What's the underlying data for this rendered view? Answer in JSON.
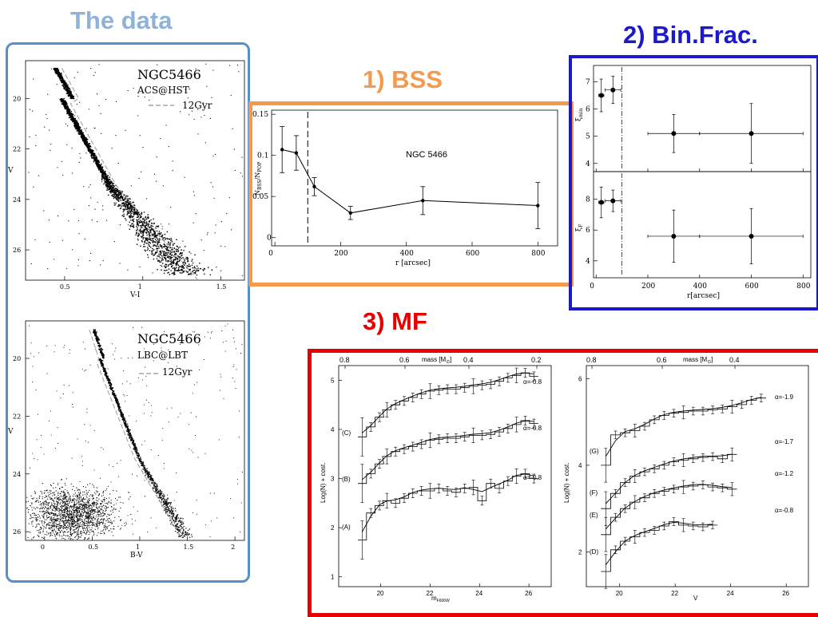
{
  "titles": {
    "data": "The data",
    "bss": "1) BSS",
    "binfrac": "2) Bin.Frac.",
    "mf": "3) MF"
  },
  "colors": {
    "data_title": "#8fb2d9",
    "data_frame": "#5b8fc7",
    "bss": "#f39a4d",
    "binfrac": "#1a1acc",
    "mf": "#e60000"
  },
  "cmd_hst": {
    "name": "NGC5466",
    "instrument": "ACS@HST",
    "iso_label": "12Gyr",
    "xlabel": "V-I",
    "ylabel": "V",
    "xticks": [
      "0.5",
      "1",
      "1.5"
    ],
    "yticks": [
      "20",
      "22",
      "24",
      "26"
    ]
  },
  "cmd_lbt": {
    "name": "NGC5466",
    "instrument": "LBC@LBT",
    "iso_label": "12Gyr",
    "xlabel": "B-V",
    "ylabel": "V",
    "xticks": [
      "0",
      "0.5",
      "1",
      "1.5",
      "2"
    ],
    "yticks": [
      "20",
      "22",
      "24",
      "26"
    ]
  },
  "bss_plot": {
    "label": "NGC 5466",
    "ylabel": "N",
    "ylabel_sub1": "BSS",
    "ylabel_mid": "/N",
    "ylabel_sub2": "POP",
    "xlabel": "r [arcsec]",
    "xticks": [
      "0",
      "200",
      "400",
      "600",
      "800"
    ],
    "yticks": [
      "0",
      "0.05",
      "0.1",
      "0.15"
    ]
  },
  "binfrac_plot": {
    "xlabel": "r[arcsec]",
    "ylabel_top": "ξ",
    "ylabel_top_sub": "min",
    "ylabel_bot": "ξ",
    "ylabel_bot_sub": "F",
    "xticks": [
      "0",
      "200",
      "400",
      "600",
      "800"
    ],
    "yticks_top": [
      "4",
      "5",
      "6",
      "7"
    ],
    "yticks_bot": [
      "4",
      "6",
      "8"
    ]
  },
  "mf_left": {
    "top_axis_label": "mass [M",
    "top_axis_sub": "⊙",
    "top_ticks": [
      "0.8",
      "0.6",
      "0.4",
      "0.2"
    ],
    "ylabel": "Log(N) + cost.",
    "xlabel": "m",
    "xlabel_sub": "F606W",
    "xticks": [
      "20",
      "22",
      "24",
      "26"
    ],
    "yticks": [
      "1",
      "2",
      "3",
      "4",
      "5"
    ],
    "curves": [
      "(A)",
      "(B)",
      "(C)"
    ],
    "alphas": [
      "α=-0.8",
      "α=-0.8",
      "α=-0.8"
    ]
  },
  "mf_right": {
    "top_axis_label": "mass [M",
    "top_axis_sub": "⊙",
    "top_ticks": [
      "0.8",
      "0.6",
      "0.4"
    ],
    "ylabel": "Log(N) + cost.",
    "xlabel": "V",
    "xticks": [
      "20",
      "22",
      "24",
      "26"
    ],
    "yticks": [
      "2",
      "4",
      "6"
    ],
    "curves": [
      "(D)",
      "(E)",
      "(F)",
      "(G)"
    ],
    "alphas": [
      "α=-0.8",
      "α=-1.2",
      "α=-1.7",
      "α=-1.9"
    ]
  },
  "chart_data": [
    {
      "type": "scatter",
      "title": "NGC 5466",
      "xlabel": "r [arcsec]",
      "ylabel": "N_BSS/N_POP",
      "xlim": [
        -10,
        860
      ],
      "ylim": [
        -0.01,
        0.155
      ],
      "x": [
        22,
        65,
        120,
        230,
        450,
        800
      ],
      "y": [
        0.107,
        0.103,
        0.062,
        0.03,
        0.045,
        0.039
      ],
      "yerr": [
        0.028,
        0.021,
        0.011,
        0.008,
        0.017,
        0.028
      ],
      "vline": 100,
      "grid": false
    },
    {
      "type": "scatter",
      "xlabel": "r[arcsec]",
      "ylabel": "ξ_min",
      "xlim": [
        -10,
        830
      ],
      "ylim": [
        3.7,
        7.6
      ],
      "x": [
        20,
        65,
        300,
        600
      ],
      "y": [
        6.5,
        6.7,
        5.1,
        5.1
      ],
      "yerr": [
        0.6,
        0.5,
        0.7,
        1.1
      ],
      "xerr": [
        10,
        30,
        100,
        200
      ],
      "vline": 100,
      "grid": false
    },
    {
      "type": "scatter",
      "xlabel": "r[arcsec]",
      "ylabel": "ξ_F",
      "xlim": [
        -10,
        830
      ],
      "ylim": [
        2.9,
        9.8
      ],
      "x": [
        20,
        65,
        300,
        600
      ],
      "y": [
        7.8,
        7.9,
        5.6,
        5.6
      ],
      "yerr": [
        1.0,
        0.7,
        1.7,
        1.8
      ],
      "xerr": [
        10,
        30,
        100,
        200
      ],
      "vline": 100,
      "grid": false
    },
    {
      "type": "line",
      "xlabel": "m_F606W",
      "ylabel": "Log(N) + cost.",
      "xlim": [
        18.3,
        26.9
      ],
      "ylim": [
        0.8,
        5.3
      ],
      "series": [
        {
          "name": "(A)",
          "x": [
            19.25,
            19.6,
            19.95,
            20.25,
            20.6,
            20.95,
            21.3,
            21.65,
            22.0,
            22.35,
            22.7,
            23.05,
            23.4,
            23.75,
            24.1,
            24.45,
            24.8,
            25.15,
            25.5,
            25.85,
            26.2
          ],
          "y": [
            1.75,
            2.3,
            2.45,
            2.55,
            2.5,
            2.6,
            2.7,
            2.75,
            2.75,
            2.8,
            2.75,
            2.72,
            2.8,
            2.82,
            2.55,
            2.9,
            2.8,
            2.95,
            3.05,
            3.1,
            3.0
          ]
        },
        {
          "name": "(B)",
          "x": [
            19.25,
            19.6,
            19.95,
            20.25,
            20.6,
            20.95,
            21.3,
            21.65,
            22.0,
            22.35,
            22.7,
            23.05,
            23.4,
            23.75,
            24.1,
            24.45,
            24.8,
            25.15,
            25.5,
            25.85,
            26.2
          ],
          "y": [
            2.9,
            3.1,
            3.3,
            3.45,
            3.55,
            3.6,
            3.65,
            3.7,
            3.78,
            3.8,
            3.82,
            3.82,
            3.85,
            3.88,
            3.88,
            3.9,
            3.95,
            4.02,
            4.1,
            4.18,
            4.12
          ]
        },
        {
          "name": "(C)",
          "x": [
            19.25,
            19.6,
            19.95,
            20.25,
            20.6,
            20.95,
            21.3,
            21.65,
            22.0,
            22.35,
            22.7,
            23.05,
            23.4,
            23.75,
            24.1,
            24.45,
            24.8,
            25.15,
            25.5,
            25.85,
            26.2
          ],
          "y": [
            3.85,
            4.05,
            4.25,
            4.4,
            4.5,
            4.58,
            4.65,
            4.72,
            4.78,
            4.8,
            4.82,
            4.82,
            4.85,
            4.88,
            4.9,
            4.92,
            4.98,
            5.05,
            5.1,
            5.15,
            5.08
          ]
        }
      ],
      "alphas": [
        -0.8,
        -0.8,
        -0.8
      ]
    },
    {
      "type": "line",
      "xlabel": "V",
      "ylabel": "Log(N) + cost.",
      "xlim": [
        18.8,
        26.8
      ],
      "ylim": [
        1.2,
        6.3
      ],
      "series": [
        {
          "name": "(D)",
          "x": [
            19.5,
            19.85,
            20.2,
            20.55,
            20.9,
            21.25,
            21.6,
            21.95,
            22.3,
            22.65,
            23.0,
            23.35
          ],
          "y": [
            1.55,
            2.05,
            2.25,
            2.35,
            2.45,
            2.5,
            2.6,
            2.7,
            2.62,
            2.6,
            2.58,
            2.62
          ]
        },
        {
          "name": "(E)",
          "x": [
            19.5,
            19.85,
            20.2,
            20.55,
            20.9,
            21.25,
            21.6,
            21.95,
            22.3,
            22.65,
            23.0,
            23.35,
            23.7,
            24.05
          ],
          "y": [
            2.4,
            2.8,
            3.0,
            3.15,
            3.25,
            3.35,
            3.4,
            3.45,
            3.5,
            3.52,
            3.55,
            3.5,
            3.48,
            3.45
          ]
        },
        {
          "name": "(F)",
          "x": [
            19.5,
            19.85,
            20.2,
            20.55,
            20.9,
            21.25,
            21.6,
            21.95,
            22.3,
            22.65,
            23.0,
            23.35,
            23.7,
            24.05
          ],
          "y": [
            3.0,
            3.35,
            3.6,
            3.75,
            3.85,
            3.92,
            4.0,
            4.08,
            4.12,
            4.15,
            4.18,
            4.2,
            4.15,
            4.25
          ]
        },
        {
          "name": "(G)",
          "x": [
            19.5,
            19.85,
            20.2,
            20.55,
            20.9,
            21.25,
            21.6,
            21.95,
            22.3,
            22.65,
            23.0,
            23.35,
            23.7,
            24.05,
            24.4,
            24.75,
            25.1
          ],
          "y": [
            4.0,
            4.7,
            4.75,
            4.8,
            4.9,
            5.05,
            5.15,
            5.2,
            5.22,
            5.25,
            5.25,
            5.28,
            5.3,
            5.35,
            5.4,
            5.5,
            5.55
          ]
        }
      ],
      "alphas": [
        -0.8,
        -1.2,
        -1.7,
        -1.9
      ]
    }
  ]
}
